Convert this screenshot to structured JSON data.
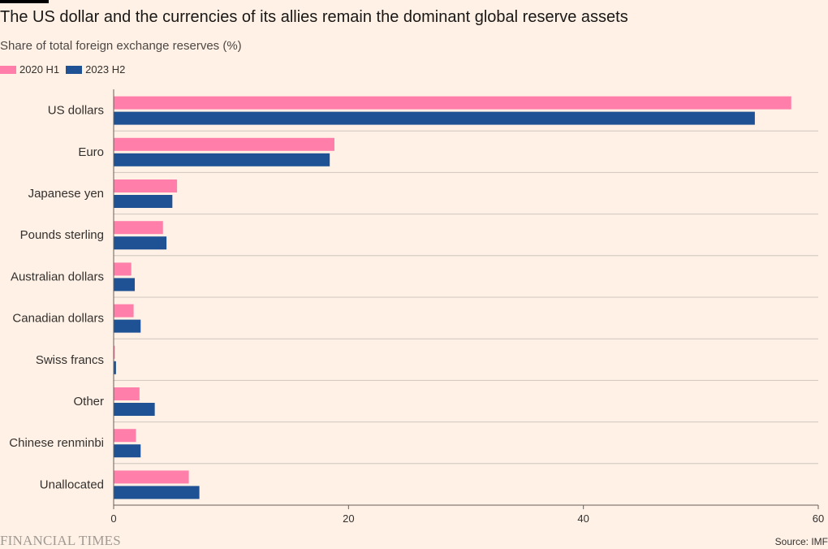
{
  "header": {
    "title": "The US dollar and the currencies of its allies remain the dominant global reserve assets",
    "subtitle": "Share of total foreign exchange reserves (%)"
  },
  "footer": {
    "logo": "FINANCIAL TIMES",
    "source": "Source: IMF"
  },
  "colors": {
    "series_2020": "#FF7FAA",
    "series_2023": "#1F5295",
    "grid": "#CEC6BE",
    "axis": "#66605C"
  },
  "chart_data": {
    "type": "bar",
    "orientation": "horizontal",
    "categories": [
      "US dollars",
      "Euro",
      "Japanese yen",
      "Pounds sterling",
      "Australian dollars",
      "Canadian dollars",
      "Swiss francs",
      "Other",
      "Chinese renminbi",
      "Unallocated"
    ],
    "series": [
      {
        "name": "2020 H1",
        "values": [
          57.7,
          18.8,
          5.4,
          4.2,
          1.5,
          1.7,
          0.1,
          2.2,
          1.9,
          6.4
        ]
      },
      {
        "name": "2023 H2",
        "values": [
          54.6,
          18.4,
          5.0,
          4.5,
          1.8,
          2.3,
          0.2,
          3.5,
          2.3,
          7.3
        ]
      }
    ],
    "xlim": [
      0,
      60
    ],
    "xticks": [
      0,
      20,
      40,
      60
    ],
    "xticklabels": [
      "0",
      "20",
      "40",
      "60"
    ],
    "legend": "top-left",
    "grid": "horizontal separators"
  }
}
